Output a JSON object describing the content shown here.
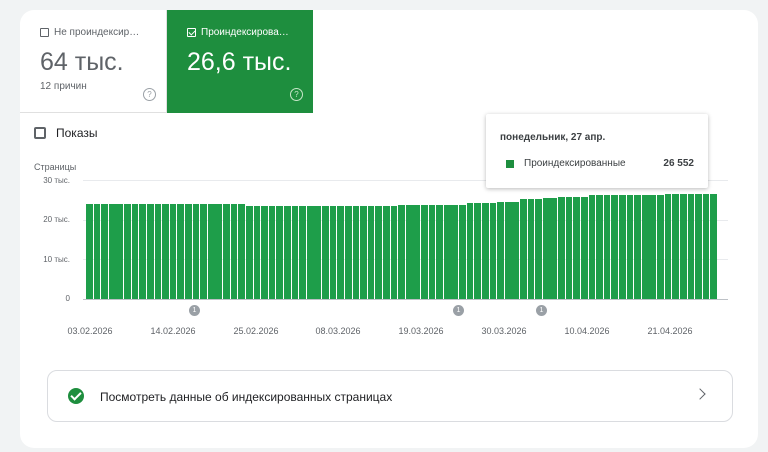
{
  "tiles": {
    "not_indexed": {
      "label": "Не проиндексир…",
      "value": "64 тыс.",
      "reasons": "12 причин",
      "help": "?"
    },
    "indexed": {
      "label": "Проиндексирова…",
      "value": "26,6 тыс.",
      "help": "?"
    }
  },
  "impressions": {
    "label": "Показы"
  },
  "chart": {
    "ylabel": "Страницы"
  },
  "tooltip": {
    "date": "понедельник, 27 апр.",
    "series": "Проиндексированные",
    "value": "26 552"
  },
  "link": {
    "label": "Посмотреть данные об индексированных страницах"
  },
  "colors": {
    "accent": "#1e8e3e",
    "bar": "#1e9e4a"
  },
  "chart_data": {
    "type": "bar",
    "ylabel": "Страницы",
    "ylim": [
      0,
      30000
    ],
    "yticks": [
      "30 тыс.",
      "20 тыс.",
      "10 тыс.",
      "0"
    ],
    "xticks": [
      "03.02.2026",
      "14.02.2026",
      "25.02.2026",
      "08.03.2026",
      "19.03.2026",
      "30.03.2026",
      "10.04.2026",
      "21.04.2026"
    ],
    "annotations": [
      {
        "date": "13.02.2026",
        "label": "1"
      },
      {
        "date": "20.03.2026",
        "label": "1"
      },
      {
        "date": "31.03.2026",
        "label": "1"
      }
    ],
    "series": [
      {
        "name": "Проиндексированные",
        "values": [
          24000,
          24000,
          24000,
          24000,
          24000,
          24000,
          24000,
          24000,
          24000,
          24000,
          24000,
          24000,
          23900,
          23900,
          23900,
          23900,
          23900,
          23900,
          23900,
          23900,
          23900,
          23400,
          23400,
          23400,
          23400,
          23400,
          23400,
          23400,
          23400,
          23400,
          23400,
          23400,
          23400,
          23400,
          23400,
          23400,
          23400,
          23400,
          23400,
          23400,
          23400,
          23600,
          23600,
          23800,
          23800,
          23800,
          23800,
          23800,
          23800,
          23800,
          24200,
          24200,
          24200,
          24200,
          24500,
          24500,
          24500,
          25200,
          25200,
          25200,
          25400,
          25400,
          25600,
          25600,
          25600,
          25700,
          26300,
          26300,
          26300,
          26300,
          26300,
          26300,
          26300,
          26300,
          26300,
          26300,
          26500,
          26500,
          26500,
          26500,
          26552,
          26552,
          26552
        ]
      }
    ]
  }
}
